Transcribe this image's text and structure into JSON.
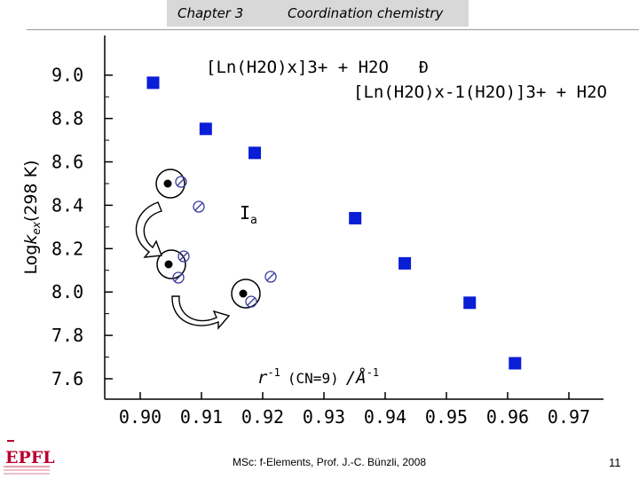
{
  "header": {
    "chapter": "Chapter 3",
    "topic": "Coordination chemistry"
  },
  "colors": {
    "marker": "#0a1ed6",
    "axis": "#000000",
    "equation_blue": "#1b3fd0",
    "arrow_fill": "#ffffff"
  },
  "chart_data": {
    "type": "scatter",
    "title": "",
    "xlabel": "r-1 (CN=9) /Å-1",
    "xlabel_parts": {
      "base": "r",
      "exp": "-1",
      "cn": "(CN=9)",
      "unit": "/Å",
      "unit_exp": "-1"
    },
    "ylabel": "Logkex(298 K)",
    "ylabel_parts": {
      "log": "Log",
      "k": "k",
      "sub": "ex",
      "rest": "(298 K)"
    },
    "xlim": [
      0.895,
      0.975
    ],
    "ylim": [
      7.55,
      9.2
    ],
    "x_ticks": [
      0.9,
      0.91,
      0.92,
      0.93,
      0.94,
      0.95,
      0.96,
      0.97
    ],
    "x_tick_labels": [
      "0.90",
      "0.91",
      "0.92",
      "0.93",
      "0.94",
      "0.95",
      "0.96",
      "0.97"
    ],
    "y_ticks": [
      7.6,
      7.8,
      8.0,
      8.2,
      8.4,
      8.6,
      8.8,
      9.0
    ],
    "y_tick_labels": [
      "7.6",
      "7.8",
      "8.0",
      "8.2",
      "8.4",
      "8.6",
      "8.8",
      "9.0"
    ],
    "series": [
      {
        "name": "Ln",
        "marker": "square",
        "x": [
          0.9021,
          0.9107,
          0.9187,
          0.9351,
          0.9432,
          0.9538,
          0.9612
        ],
        "y": [
          8.9648,
          8.7522,
          8.6415,
          8.3404,
          8.1322,
          7.9505,
          7.6715
        ]
      }
    ],
    "annotations": {
      "equation_left": "[Ln(H2O)x]3+ + H2O",
      "equation_right": "[Ln(H2O)x-1(H2O)]3+ + H2O",
      "equilibrium_symbol": "Ð",
      "mechanism": "Ia",
      "mechanism_base": "I",
      "mechanism_sub": "a"
    }
  },
  "footer": {
    "text": "MSc: f-Elements, Prof. J.-C. Bünzli, 2008",
    "page_number": "11",
    "logo_text": "EPFL"
  }
}
